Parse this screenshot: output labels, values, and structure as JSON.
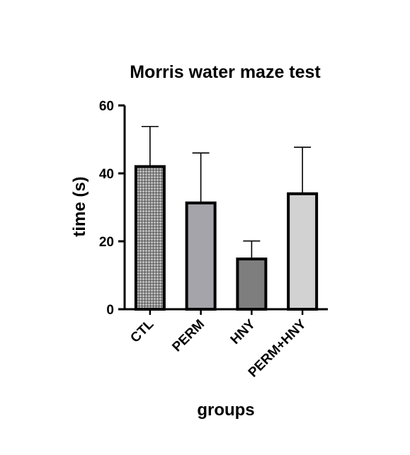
{
  "chart_data": {
    "type": "bar",
    "title": "Morris water maze test",
    "xlabel": "groups",
    "ylabel": "time (s)",
    "ylim": [
      0,
      60
    ],
    "yticks": [
      0,
      20,
      40,
      60
    ],
    "categories": [
      "CTL",
      "PERM",
      "HNY",
      "PERM+HNY"
    ],
    "values": [
      42,
      31.3,
      14.8,
      34
    ],
    "error": [
      11.8,
      14.7,
      5.3,
      13.7
    ],
    "fill_colors": [
      "#8a8a8a",
      "#a4a4aa",
      "#7e7e7e",
      "#d2d2d2"
    ],
    "patterns": [
      "crosshatch",
      "solid",
      "solid",
      "solid"
    ],
    "grid": false
  }
}
